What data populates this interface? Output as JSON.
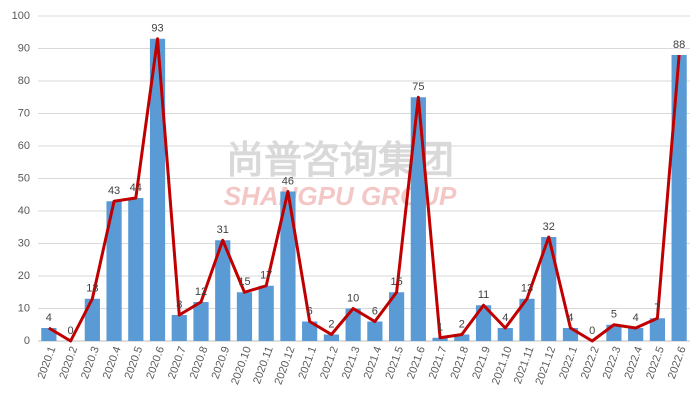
{
  "chart_data": {
    "type": "combo",
    "watermark": "尚普咨询集团",
    "watermark_en": "SHANGPU GROUP",
    "categories": [
      "2020.1",
      "2020.2",
      "2020.3",
      "2020.4",
      "2020.5",
      "2020.6",
      "2020.7",
      "2020.8",
      "2020.9",
      "2020.10",
      "2020.11",
      "2020.12",
      "2021.1",
      "2021.2",
      "2021.3",
      "2021.4",
      "2021.5",
      "2021.6",
      "2021.7",
      "2021.8",
      "2021.9",
      "2021.10",
      "2021.11",
      "2021.12",
      "2022.1",
      "2022.2",
      "2022.3",
      "2022.4",
      "2022.5",
      "2022.6"
    ],
    "values": [
      4,
      0,
      13,
      43,
      44,
      93,
      8,
      12,
      31,
      15,
      17,
      46,
      6,
      2,
      10,
      6,
      15,
      75,
      1,
      2,
      11,
      4,
      13,
      32,
      4,
      0,
      5,
      4,
      7,
      88
    ],
    "color": "#5b9bd5",
    "line_color": "#c00000",
    "ylim": [
      0,
      100
    ],
    "yticks": [
      0,
      10,
      20,
      30,
      40,
      50,
      60,
      70,
      80,
      90,
      100
    ],
    "grid": true
  }
}
